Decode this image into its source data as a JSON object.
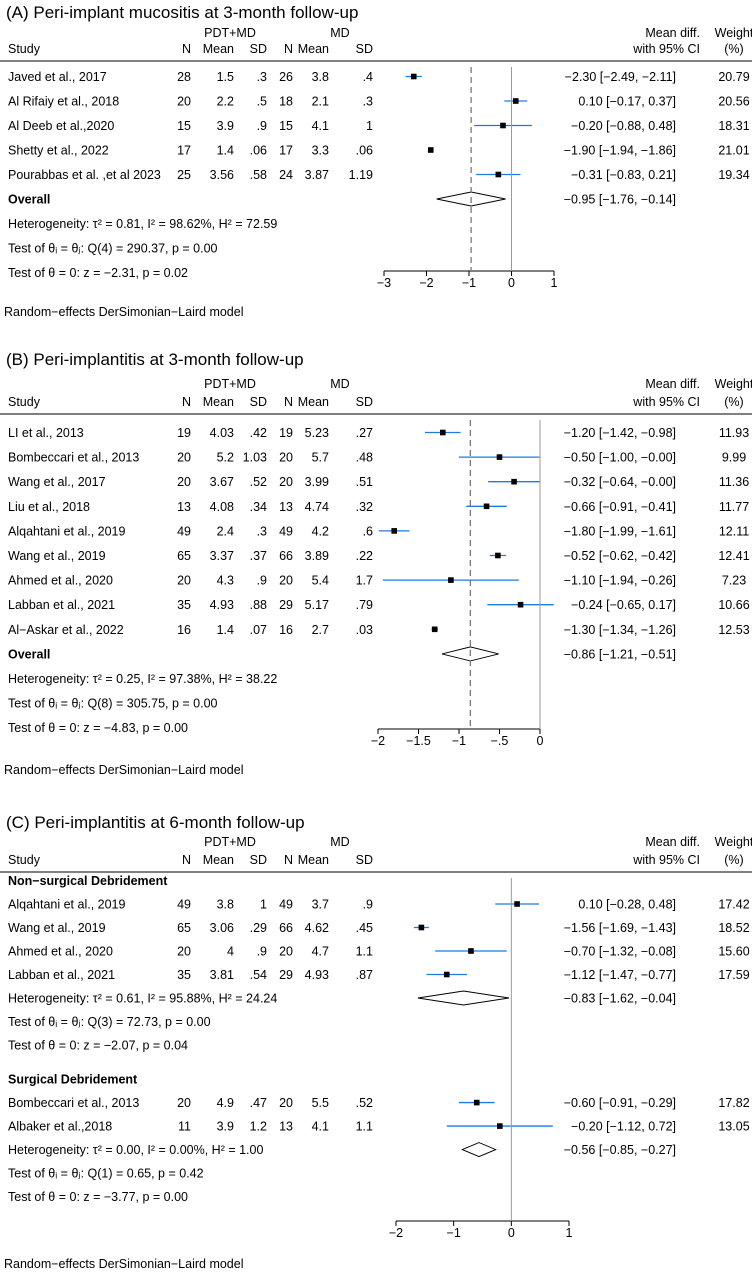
{
  "chart_data": [
    {
      "type": "forest",
      "title": "(A) Peri-implant mucositis at 3-month follow-up",
      "columns": {
        "group1": "PDT+MD",
        "group2": "MD",
        "study": "Study",
        "n": "N",
        "mean": "Mean",
        "sd": "SD",
        "effect": [
          "Mean diff.",
          "with 95% CI"
        ],
        "weight": [
          "Weight",
          "(%)"
        ]
      },
      "xlim": [
        -3,
        1
      ],
      "xticks": [
        -3,
        -2,
        -1,
        0,
        1
      ],
      "xtick_labels": [
        "−3",
        "−2",
        "−1",
        "0",
        "1"
      ],
      "overall_line": -0.95,
      "subgroups": [
        {
          "name": "",
          "studies": [
            {
              "study": "Javed et al., 2017",
              "n1": "28",
              "mean1": "1.5",
              "sd1": ".3",
              "n2": "26",
              "mean2": "3.8",
              "sd2": ".4",
              "md": -2.3,
              "lo": -2.49,
              "hi": -2.11,
              "ci_text": "−2.30 [−2.49, −2.11]",
              "weight": "20.79"
            },
            {
              "study": "Al Rifaiy et al., 2018",
              "n1": "20",
              "mean1": "2.2",
              "sd1": ".5",
              "n2": "18",
              "mean2": "2.1",
              "sd2": ".3",
              "md": 0.1,
              "lo": -0.17,
              "hi": 0.37,
              "ci_text": "0.10 [−0.17,  0.37]",
              "weight": "20.56"
            },
            {
              "study": "Al Deeb et al.,2020",
              "n1": "15",
              "mean1": "3.9",
              "sd1": ".9",
              "n2": "15",
              "mean2": "4.1",
              "sd2": "1",
              "md": -0.2,
              "lo": -0.88,
              "hi": 0.48,
              "ci_text": "−0.20 [−0.88,  0.48]",
              "weight": "18.31"
            },
            {
              "study": "Shetty et al., 2022",
              "n1": "17",
              "mean1": "1.4",
              "sd1": ".06",
              "n2": "17",
              "mean2": "3.3",
              "sd2": ".06",
              "md": -1.9,
              "lo": -1.94,
              "hi": -1.86,
              "ci_text": "−1.90 [−1.94, −1.86]",
              "weight": "21.01"
            },
            {
              "study": "Pourabbas et al. ,et al 2023",
              "n1": "25",
              "mean1": "3.56",
              "sd1": ".58",
              "n2": "24",
              "mean2": "3.87",
              "sd2": "1.19",
              "md": -0.31,
              "lo": -0.83,
              "hi": 0.21,
              "ci_text": "−0.31 [−0.83,  0.21]",
              "weight": "19.34"
            }
          ],
          "summary": {
            "label": "Overall",
            "md": -0.95,
            "lo": -1.76,
            "hi": -0.14,
            "ci_text": "−0.95 [−1.76, −0.14]",
            "bold": true
          },
          "stats": [
            "Heterogeneity: τ² = 0.81, I² = 98.62%, H² = 72.59",
            "Test of θᵢ = θⱼ: Q(4) = 290.37, p = 0.00",
            "Test of θ = 0: z = −2.31, p = 0.02"
          ]
        }
      ],
      "model_note": "Random−effects DerSimonian−Laird model"
    },
    {
      "type": "forest",
      "title": "(B) Peri-implantitis at 3-month follow-up",
      "columns": {
        "group1": "PDT+MD",
        "group2": "MD",
        "study": "Study",
        "n": "N",
        "mean": "Mean",
        "sd": "SD",
        "effect": [
          "Mean diff.",
          "with 95% CI"
        ],
        "weight": [
          "Weight",
          "(%)"
        ]
      },
      "xlim": [
        -2,
        0
      ],
      "xticks": [
        -2,
        -1.5,
        -1,
        -0.5,
        0
      ],
      "xtick_labels": [
        "−2",
        "−1.5",
        "−1",
        "−.5",
        "0"
      ],
      "overall_line": -0.86,
      "subgroups": [
        {
          "name": "",
          "studies": [
            {
              "study": "LI et al., 2013",
              "n1": "19",
              "mean1": "4.03",
              "sd1": ".42",
              "n2": "19",
              "mean2": "5.23",
              "sd2": ".27",
              "md": -1.2,
              "lo": -1.42,
              "hi": -0.98,
              "ci_text": "−1.20 [−1.42, −0.98]",
              "weight": "11.93"
            },
            {
              "study": "Bombeccari et al., 2013",
              "n1": "20",
              "mean1": "5.2",
              "sd1": "1.03",
              "n2": "20",
              "mean2": "5.7",
              "sd2": ".48",
              "md": -0.5,
              "lo": -1.0,
              "hi": -0.0,
              "ci_text": "−0.50 [−1.00, −0.00]",
              "weight": "9.99"
            },
            {
              "study": "Wang et al., 2017",
              "n1": "20",
              "mean1": "3.67",
              "sd1": ".52",
              "n2": "20",
              "mean2": "3.99",
              "sd2": ".51",
              "md": -0.32,
              "lo": -0.64,
              "hi": -0.0,
              "ci_text": "−0.32 [−0.64, −0.00]",
              "weight": "11.36"
            },
            {
              "study": "Liu et al., 2018",
              "n1": "13",
              "mean1": "4.08",
              "sd1": ".34",
              "n2": "13",
              "mean2": "4.74",
              "sd2": ".32",
              "md": -0.66,
              "lo": -0.91,
              "hi": -0.41,
              "ci_text": "−0.66 [−0.91, −0.41]",
              "weight": "11.77"
            },
            {
              "study": "Alqahtani et al., 2019",
              "n1": "49",
              "mean1": "2.4",
              "sd1": ".3",
              "n2": "49",
              "mean2": "4.2",
              "sd2": ".6",
              "md": -1.8,
              "lo": -1.99,
              "hi": -1.61,
              "ci_text": "−1.80 [−1.99, −1.61]",
              "weight": "12.11"
            },
            {
              "study": "Wang et al., 2019",
              "n1": "65",
              "mean1": "3.37",
              "sd1": ".37",
              "n2": "66",
              "mean2": "3.89",
              "sd2": ".22",
              "md": -0.52,
              "lo": -0.62,
              "hi": -0.42,
              "ci_text": "−0.52 [−0.62, −0.42]",
              "weight": "12.41"
            },
            {
              "study": "Ahmed et al., 2020",
              "n1": "20",
              "mean1": "4.3",
              "sd1": ".9",
              "n2": "20",
              "mean2": "5.4",
              "sd2": "1.7",
              "md": -1.1,
              "lo": -1.94,
              "hi": -0.26,
              "ci_text": "−1.10 [−1.94, −0.26]",
              "weight": "7.23"
            },
            {
              "study": "Labban et al., 2021",
              "n1": "35",
              "mean1": "4.93",
              "sd1": ".88",
              "n2": "29",
              "mean2": "5.17",
              "sd2": ".79",
              "md": -0.24,
              "lo": -0.65,
              "hi": 0.17,
              "ci_text": "−0.24 [−0.65,  0.17]",
              "weight": "10.66"
            },
            {
              "study": "Al−Askar et al., 2022",
              "n1": "16",
              "mean1": "1.4",
              "sd1": ".07",
              "n2": "16",
              "mean2": "2.7",
              "sd2": ".03",
              "md": -1.3,
              "lo": -1.34,
              "hi": -1.26,
              "ci_text": "−1.30 [−1.34, −1.26]",
              "weight": "12.53"
            }
          ],
          "summary": {
            "label": "Overall",
            "md": -0.86,
            "lo": -1.21,
            "hi": -0.51,
            "ci_text": "−0.86 [−1.21, −0.51]",
            "bold": true
          },
          "stats": [
            "Heterogeneity: τ² = 0.25, I² = 97.38%, H² = 38.22",
            "Test of θᵢ = θⱼ: Q(8) = 305.75, p = 0.00",
            "Test of θ = 0: z = −4.83, p = 0.00"
          ]
        }
      ],
      "model_note": "Random−effects DerSimonian−Laird model"
    },
    {
      "type": "forest",
      "title": "(C) Peri-implantitis at 6-month follow-up",
      "columns": {
        "group1": "PDT+MD",
        "group2": "MD",
        "study": "Study",
        "n": "N",
        "mean": "Mean",
        "sd": "SD",
        "effect": [
          "Mean diff.",
          "with 95% CI"
        ],
        "weight": [
          "Weight",
          "(%)"
        ]
      },
      "xlim": [
        -2,
        1
      ],
      "xticks": [
        -2,
        -1,
        0,
        1
      ],
      "xtick_labels": [
        "−2",
        "−1",
        "0",
        "1"
      ],
      "overall_line": null,
      "subgroups": [
        {
          "name": "Non−surgical Debridement",
          "studies": [
            {
              "study": "Alqahtani et al., 2019",
              "n1": "49",
              "mean1": "3.8",
              "sd1": "1",
              "n2": "49",
              "mean2": "3.7",
              "sd2": ".9",
              "md": 0.1,
              "lo": -0.28,
              "hi": 0.48,
              "ci_text": "0.10 [−0.28,  0.48]",
              "weight": "17.42"
            },
            {
              "study": "Wang et al., 2019",
              "n1": "65",
              "mean1": "3.06",
              "sd1": ".29",
              "n2": "66",
              "mean2": "4.62",
              "sd2": ".45",
              "md": -1.56,
              "lo": -1.69,
              "hi": -1.43,
              "ci_text": "−1.56 [−1.69, −1.43]",
              "weight": "18.52"
            },
            {
              "study": "Ahmed et al., 2020",
              "n1": "20",
              "mean1": "4",
              "sd1": ".9",
              "n2": "20",
              "mean2": "4.7",
              "sd2": "1.1",
              "md": -0.7,
              "lo": -1.32,
              "hi": -0.08,
              "ci_text": "−0.70 [−1.32, −0.08]",
              "weight": "15.60"
            },
            {
              "study": "Labban et al., 2021",
              "n1": "35",
              "mean1": "3.81",
              "sd1": ".54",
              "n2": "29",
              "mean2": "4.93",
              "sd2": ".87",
              "md": -1.12,
              "lo": -1.47,
              "hi": -0.77,
              "ci_text": "−1.12 [−1.47, −0.77]",
              "weight": "17.59"
            }
          ],
          "summary": {
            "label": "Heterogeneity: τ² = 0.61, I² = 95.88%, H² = 24.24",
            "md": -0.83,
            "lo": -1.62,
            "hi": -0.04,
            "ci_text": "−0.83 [−1.62, −0.04]",
            "bold": false
          },
          "stats": [
            "Test of θᵢ = θⱼ: Q(3) = 72.73, p = 0.00",
            "Test of θ = 0: z = −2.07, p = 0.04"
          ]
        },
        {
          "name": "Surgical Debridement",
          "studies": [
            {
              "study": "Bombeccari et al., 2013",
              "n1": "20",
              "mean1": "4.9",
              "sd1": ".47",
              "n2": "20",
              "mean2": "5.5",
              "sd2": ".52",
              "md": -0.6,
              "lo": -0.91,
              "hi": -0.29,
              "ci_text": "−0.60 [−0.91, −0.29]",
              "weight": "17.82"
            },
            {
              "study": "Albaker et al.,2018",
              "n1": "11",
              "mean1": "3.9",
              "sd1": "1.2",
              "n2": "13",
              "mean2": "4.1",
              "sd2": "1.1",
              "md": -0.2,
              "lo": -1.12,
              "hi": 0.72,
              "ci_text": "−0.20 [−1.12,  0.72]",
              "weight": "13.05"
            }
          ],
          "summary": {
            "label": "Heterogeneity: τ² = 0.00, I² = 0.00%, H² = 1.00",
            "md": -0.56,
            "lo": -0.85,
            "hi": -0.27,
            "ci_text": "−0.56 [−0.85, −0.27]",
            "bold": false
          },
          "stats": [
            "Test of θᵢ = θⱼ: Q(1) = 0.65, p = 0.42",
            "Test of θ = 0: z = −3.77, p = 0.00"
          ]
        }
      ],
      "model_note": "Random−effects DerSimonian−Laird model"
    }
  ],
  "colors": {
    "ci_line": "#1e7be6",
    "marker": "#000000",
    "dashed_line": "#7a7a7a",
    "zero_line": "#9a9a9a",
    "rule": "#000000"
  }
}
